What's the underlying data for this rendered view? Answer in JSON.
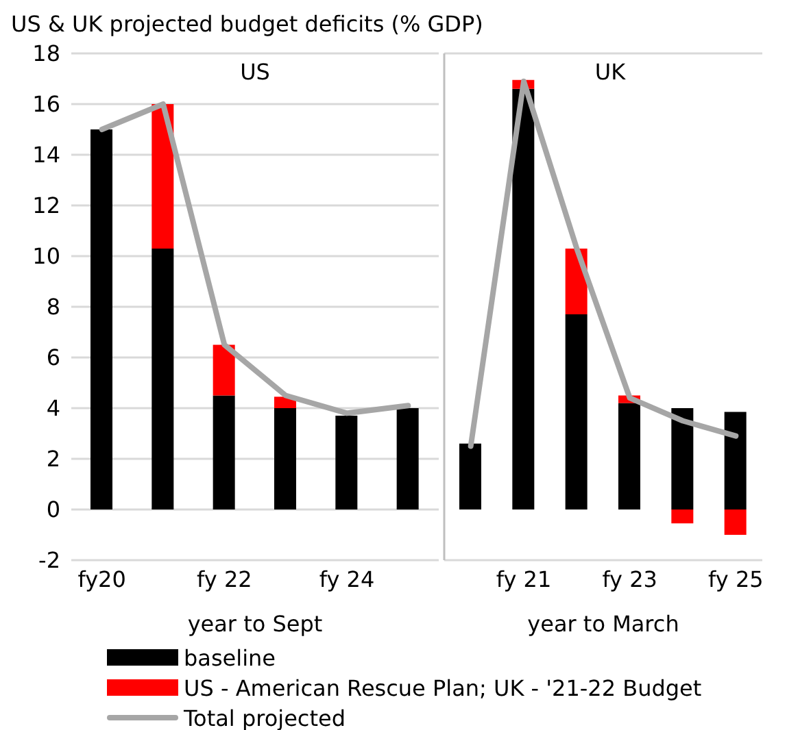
{
  "chart_data": [
    {
      "type": "bar",
      "title": "US & UK projected budget deficits (% GDP)",
      "subtitle": "US",
      "xlabel": "year to Sept",
      "categories": [
        "fy20",
        null,
        "fy 22",
        null,
        "fy 24",
        null
      ],
      "stacked": true,
      "grid": "y",
      "legend": "bottom",
      "ylim": [
        -2,
        18
      ],
      "yticks": [
        -2,
        0,
        2,
        4,
        6,
        8,
        10,
        12,
        14,
        16,
        18
      ],
      "series": [
        {
          "name": "baseline",
          "color": "#000000",
          "values": [
            15,
            10.3,
            4.5,
            4.0,
            3.7,
            4.0
          ]
        },
        {
          "name": "US - American Rescue Plan; UK - '21-22 Budget",
          "color": "#ff0000",
          "values": [
            0,
            5.7,
            2.0,
            0.45,
            null,
            null
          ]
        },
        {
          "name": "Total projected",
          "type": "line",
          "color": "#a6a6a6",
          "values": [
            15,
            16,
            6.5,
            4.5,
            3.8,
            4.1
          ]
        }
      ]
    },
    {
      "type": "bar",
      "subtitle": "UK",
      "xlabel": "year to March",
      "categories": [
        null,
        "fy 21",
        null,
        "fy 23",
        null,
        "fy 25"
      ],
      "stacked": true,
      "grid": "y",
      "tick_labels": "x",
      "ylim": [
        -2,
        18
      ],
      "yticks": [
        -2,
        0,
        2,
        4,
        6,
        8,
        10,
        12,
        14,
        16,
        18
      ],
      "series": [
        {
          "color": "#000000",
          "values": [
            2.6,
            16.6,
            7.7,
            4.2,
            4.0,
            3.85
          ]
        },
        {
          "color": "#ff0000",
          "values": [
            0,
            0.35,
            2.6,
            0.3,
            -0.55,
            -1.0
          ]
        },
        {
          "type": "line",
          "color": "#a6a6a6",
          "values": [
            2.5,
            16.9,
            10.3,
            4.4,
            3.5,
            2.9
          ]
        }
      ]
    }
  ]
}
